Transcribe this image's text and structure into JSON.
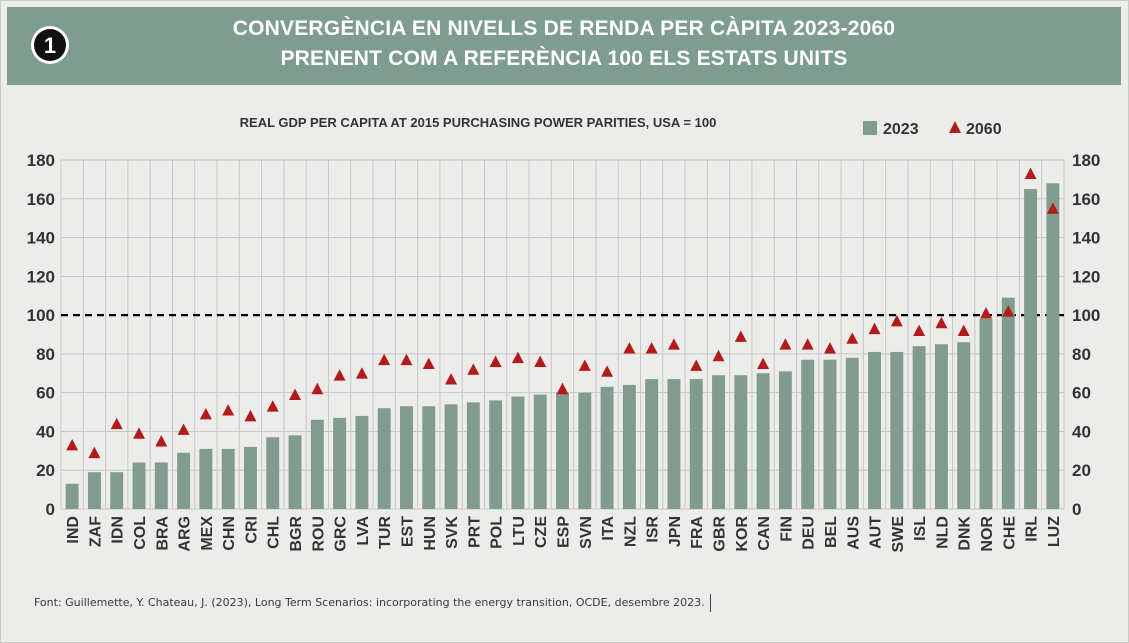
{
  "header": {
    "title_line1": "CONVERGÈNCIA EN NIVELLS DE RENDA PER CÀPITA 2023-2060",
    "title_line2": "PRENENT COM A REFERÈNCIA 100 ELS ESTATS UNITS",
    "badge_number": "1"
  },
  "source": "Font: Guillemette, Y. Chateau, J. (2023), Long Term Scenarios: incorporating the energy transition, OCDE, desembre 2023.",
  "colors": {
    "bar": "#819c8f",
    "marker": "#b31b1b",
    "header": "#7e9c8f",
    "grid": "#c6c6c6",
    "reference_line": "#000000"
  },
  "chart_data": {
    "type": "bar",
    "subtitle": "REAL GDP PER CAPITA AT 2015 PURCHASING POWER PARITIES, USA = 100",
    "categories": [
      "IND",
      "ZAF",
      "IDN",
      "COL",
      "BRA",
      "ARG",
      "MEX",
      "CHN",
      "CRI",
      "CHL",
      "BGR",
      "ROU",
      "GRC",
      "LVA",
      "TUR",
      "EST",
      "HUN",
      "SVK",
      "PRT",
      "POL",
      "LTU",
      "CZE",
      "ESP",
      "SVN",
      "ITA",
      "NZL",
      "ISR",
      "JPN",
      "FRA",
      "GBR",
      "KOR",
      "CAN",
      "FIN",
      "DEU",
      "BEL",
      "AUS",
      "AUT",
      "SWE",
      "ISL",
      "NLD",
      "DNK",
      "NOR",
      "CHE",
      "IRL",
      "LUZ"
    ],
    "series": [
      {
        "name": "2023",
        "type": "bar",
        "values": [
          13,
          19,
          19,
          24,
          24,
          29,
          31,
          31,
          32,
          37,
          38,
          46,
          47,
          48,
          52,
          53,
          53,
          54,
          55,
          56,
          58,
          59,
          60,
          60,
          63,
          64,
          67,
          67,
          67,
          69,
          69,
          70,
          71,
          77,
          77,
          78,
          81,
          81,
          84,
          85,
          86,
          98,
          109,
          165,
          168
        ]
      },
      {
        "name": "2060",
        "type": "marker",
        "values": [
          33,
          29,
          44,
          39,
          35,
          41,
          49,
          51,
          48,
          53,
          59,
          62,
          69,
          70,
          77,
          77,
          75,
          67,
          72,
          76,
          78,
          76,
          62,
          74,
          71,
          83,
          83,
          85,
          74,
          79,
          89,
          75,
          85,
          85,
          83,
          88,
          93,
          97,
          92,
          96,
          92,
          101,
          102,
          173,
          155
        ]
      }
    ],
    "ylim": [
      0,
      180
    ],
    "yticks": [
      0,
      20,
      40,
      60,
      80,
      100,
      120,
      140,
      160,
      180
    ],
    "reference_line": 100,
    "grid": true,
    "legend_position": "top-right"
  }
}
